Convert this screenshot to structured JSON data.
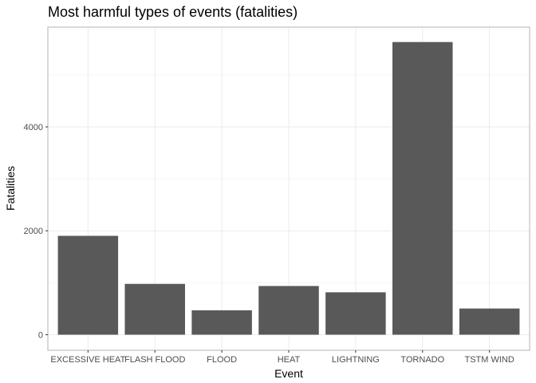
{
  "chart_data": {
    "type": "bar",
    "title": "Most harmful types of events (fatalities)",
    "xlabel": "Event",
    "ylabel": "Fatalities",
    "categories": [
      "EXCESSIVE HEAT",
      "FLASH FLOOD",
      "FLOOD",
      "HEAT",
      "LIGHTNING",
      "TORNADO",
      "TSTM WIND"
    ],
    "values": [
      1903,
      978,
      470,
      937,
      816,
      5633,
      504
    ],
    "yticks": [
      0,
      2000,
      4000
    ],
    "ylim": [
      -300,
      5920
    ],
    "bar_color": "#595959",
    "grid": true
  }
}
